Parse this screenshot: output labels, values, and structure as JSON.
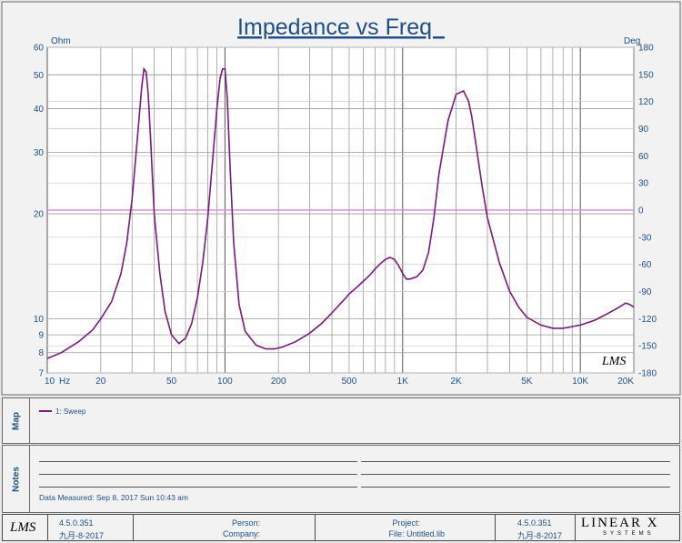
{
  "chart_data": {
    "type": "line",
    "title": "Impedance vs Freq  ",
    "xscale": "log",
    "xlim": [
      10,
      20000
    ],
    "xticks": [
      {
        "value": 10,
        "label": "10"
      },
      {
        "value": 20,
        "label": "20"
      },
      {
        "value": 50,
        "label": "50"
      },
      {
        "value": 100,
        "label": "100"
      },
      {
        "value": 200,
        "label": "200"
      },
      {
        "value": 500,
        "label": "500"
      },
      {
        "value": 1000,
        "label": "1K"
      },
      {
        "value": 2000,
        "label": "2K"
      },
      {
        "value": 5000,
        "label": "5K"
      },
      {
        "value": 10000,
        "label": "10K"
      },
      {
        "value": 20000,
        "label": "20K"
      }
    ],
    "xunit": "Hz",
    "yscale": "log",
    "ylim": [
      7,
      60
    ],
    "yunit": "Ohm",
    "yticks": [
      7,
      8,
      9,
      10,
      20,
      30,
      40,
      50,
      60
    ],
    "y2unit": "Deg",
    "y2lim": [
      -180,
      180
    ],
    "y2ticks": [
      -180,
      -150,
      -120,
      -90,
      -60,
      -30,
      0,
      30,
      60,
      90,
      120,
      150,
      180
    ],
    "grid": true,
    "series": [
      {
        "name": "1: Sweep",
        "color": "#7a1a7a",
        "x": [
          10,
          12,
          15,
          18,
          20,
          23,
          26,
          28,
          30,
          32,
          34,
          35,
          36,
          37,
          38,
          40,
          43,
          46,
          50,
          55,
          60,
          65,
          70,
          75,
          80,
          85,
          90,
          94,
          97,
          100,
          103,
          107,
          112,
          120,
          130,
          150,
          170,
          190,
          210,
          250,
          300,
          350,
          400,
          450,
          480,
          500,
          550,
          600,
          650,
          700,
          750,
          800,
          850,
          900,
          950,
          1000,
          1050,
          1100,
          1200,
          1300,
          1400,
          1500,
          1600,
          1800,
          2000,
          2200,
          2350,
          2450,
          2600,
          2800,
          3000,
          3500,
          4000,
          4500,
          5000,
          6000,
          7000,
          8000,
          9000,
          10000,
          12000,
          14000,
          16000,
          18000,
          19000,
          20000
        ],
        "y": [
          7.7,
          8.0,
          8.6,
          9.3,
          10.0,
          11.2,
          13.5,
          16.5,
          22,
          32,
          46,
          52,
          51,
          44,
          34,
          20,
          13.5,
          10.5,
          9.0,
          8.5,
          8.8,
          9.7,
          11.5,
          14.5,
          19.5,
          28,
          40,
          49,
          52,
          52,
          43,
          27,
          16.5,
          11,
          9.2,
          8.4,
          8.2,
          8.2,
          8.3,
          8.6,
          9.1,
          9.7,
          10.4,
          11.1,
          11.5,
          11.8,
          12.3,
          12.8,
          13.3,
          13.9,
          14.4,
          14.8,
          15.0,
          14.8,
          14.2,
          13.5,
          13.0,
          13.0,
          13.2,
          13.8,
          15.5,
          19.5,
          26,
          37,
          44,
          45,
          42,
          38,
          31,
          24,
          19.5,
          14.5,
          12.0,
          10.8,
          10.1,
          9.6,
          9.4,
          9.4,
          9.5,
          9.6,
          9.9,
          10.3,
          10.7,
          11.1,
          11.0,
          10.8
        ]
      }
    ],
    "watermark": "LMS"
  },
  "map": {
    "label": "Map",
    "legend": "1: Sweep"
  },
  "notes": {
    "label": "Notes",
    "data_measured": "Data Measured: Sep 8, 2017 Sun 10:43 am"
  },
  "footer": {
    "logo": "LMS",
    "version": "4.5.0.351",
    "date": "九月-8-2017",
    "person_label": "Person:",
    "company_label": "Company:",
    "project_label": "Project:",
    "file_label": "File: Untitled.lib",
    "version2": "4.5.0.351",
    "date2": "九月-8-2017",
    "brand": "LINEAR X",
    "brand_sub": "SYSTEMS"
  }
}
